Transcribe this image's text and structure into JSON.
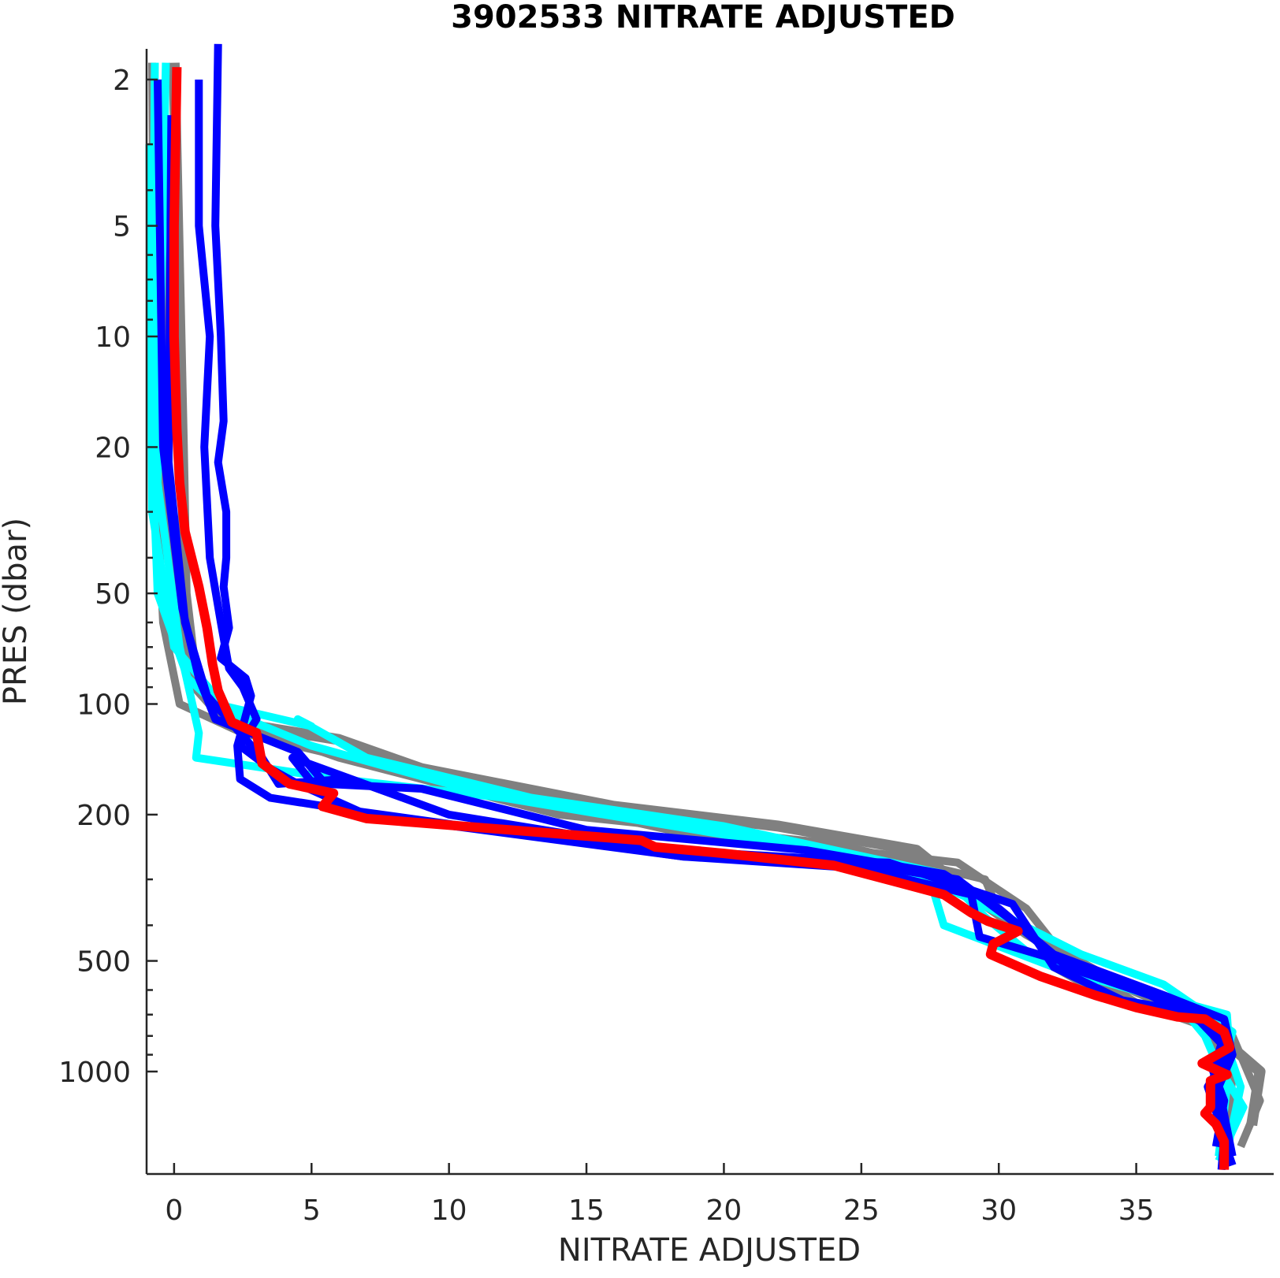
{
  "chart_data": {
    "type": "line",
    "title": "3902533  NITRATE ADJUSTED",
    "xlabel": "NITRATE ADJUSTED",
    "ylabel": "PRES (dbar)",
    "xlim": [
      -1,
      40
    ],
    "ylim": [
      1.65,
      1900
    ],
    "y_scale": "log",
    "y_reversed": true,
    "grid": false,
    "x_ticks": [
      0,
      5,
      10,
      15,
      20,
      25,
      30,
      35
    ],
    "x_tick_labels": [
      "0",
      "5",
      "10",
      "15",
      "20",
      "25",
      "30",
      "35"
    ],
    "y_ticks": [
      2,
      5,
      10,
      20,
      50,
      100,
      200,
      500,
      1000
    ],
    "y_tick_labels": [
      "2",
      "5",
      "10",
      "20",
      "50",
      "100",
      "200",
      "500",
      "1000"
    ],
    "series": [
      {
        "color": "#808080",
        "width": 14,
        "points": [
          [
            0,
            1.8
          ],
          [
            0.3,
            20
          ],
          [
            0.4,
            50
          ],
          [
            0.8,
            90
          ],
          [
            1.6,
            105
          ],
          [
            3,
            115
          ],
          [
            6,
            125
          ],
          [
            9,
            150
          ],
          [
            16,
            190
          ],
          [
            22,
            215
          ],
          [
            27,
            250
          ],
          [
            29,
            330
          ],
          [
            31,
            420
          ],
          [
            34,
            560
          ],
          [
            37,
            700
          ],
          [
            38,
            800
          ],
          [
            39.5,
            1000
          ],
          [
            39.2,
            1400
          ]
        ]
      },
      {
        "color": "#808080",
        "width": 10,
        "points": [
          [
            -0.8,
            1.8
          ],
          [
            -0.7,
            20
          ],
          [
            -0.4,
            60
          ],
          [
            0.2,
            100
          ],
          [
            2.5,
            120
          ],
          [
            8,
            150
          ],
          [
            18,
            220
          ],
          [
            28.5,
            270
          ],
          [
            31,
            360
          ],
          [
            32.5,
            500
          ],
          [
            35,
            650
          ],
          [
            38.5,
            800
          ],
          [
            39.5,
            1200
          ],
          [
            38.8,
            1600
          ]
        ]
      },
      {
        "color": "#808080",
        "width": 10,
        "points": [
          [
            -0.5,
            2.5
          ],
          [
            -0.3,
            30
          ],
          [
            0.5,
            80
          ],
          [
            2,
            110
          ],
          [
            6,
            140
          ],
          [
            14,
            200
          ],
          [
            24,
            240
          ],
          [
            29.5,
            300
          ],
          [
            30.5,
            450
          ],
          [
            33.5,
            600
          ],
          [
            37.5,
            750
          ],
          [
            38.5,
            1000
          ],
          [
            38.3,
            1700
          ]
        ]
      },
      {
        "color": "#00FFFF",
        "width": 10,
        "points": [
          [
            -0.7,
            1.8
          ],
          [
            -0.8,
            20
          ],
          [
            -0.6,
            50
          ],
          [
            0.5,
            85
          ],
          [
            1.5,
            100
          ],
          [
            5,
            115
          ],
          [
            4.5,
            110
          ],
          [
            7,
            140
          ],
          [
            13,
            180
          ],
          [
            20,
            215
          ],
          [
            28,
            290
          ],
          [
            29.5,
            380
          ],
          [
            31,
            470
          ],
          [
            35,
            600
          ],
          [
            38.3,
            700
          ],
          [
            38.4,
            900
          ],
          [
            38.8,
            1100
          ],
          [
            38.2,
            1800
          ]
        ]
      },
      {
        "color": "#00FFFF",
        "width": 10,
        "points": [
          [
            -0.3,
            1.8
          ],
          [
            -0.6,
            25
          ],
          [
            0.2,
            70
          ],
          [
            0.9,
            120
          ],
          [
            0.8,
            140
          ],
          [
            6,
            160
          ],
          [
            12,
            180
          ],
          [
            22,
            240
          ],
          [
            27.5,
            300
          ],
          [
            28,
            400
          ],
          [
            32,
            520
          ],
          [
            36.5,
            650
          ],
          [
            37.5,
            800
          ],
          [
            38.3,
            1100
          ],
          [
            38,
            1700
          ]
        ]
      },
      {
        "color": "#00FFFF",
        "width": 10,
        "points": [
          [
            -0.9,
            3
          ],
          [
            -0.8,
            30
          ],
          [
            0,
            70
          ],
          [
            2,
            105
          ],
          [
            5,
            130
          ],
          [
            10,
            165
          ],
          [
            17,
            205
          ],
          [
            26,
            270
          ],
          [
            29,
            340
          ],
          [
            33,
            480
          ],
          [
            36,
            580
          ],
          [
            38.5,
            780
          ],
          [
            38.1,
            1000
          ],
          [
            38.9,
            1250
          ],
          [
            38,
            1750
          ]
        ]
      },
      {
        "color": "#0000FF",
        "width": 10,
        "points": [
          [
            -0.6,
            2
          ],
          [
            -0.4,
            20
          ],
          [
            0.3,
            55
          ],
          [
            0.9,
            85
          ],
          [
            1.5,
            110
          ],
          [
            4.5,
            135
          ],
          [
            5.5,
            165
          ],
          [
            9,
            170
          ],
          [
            15,
            220
          ],
          [
            23,
            250
          ],
          [
            28,
            290
          ],
          [
            30,
            360
          ],
          [
            32,
            480
          ],
          [
            36,
            620
          ],
          [
            38.2,
            720
          ],
          [
            38.5,
            900
          ],
          [
            38,
            1100
          ],
          [
            38.5,
            1700
          ]
        ]
      },
      {
        "color": "#0000FF",
        "width": 10,
        "points": [
          [
            -0.1,
            2.5
          ],
          [
            -0.2,
            22
          ],
          [
            0.4,
            60
          ],
          [
            1.2,
            95
          ],
          [
            3.2,
            140
          ],
          [
            3.8,
            165
          ],
          [
            6.2,
            160
          ],
          [
            5.2,
            170
          ],
          [
            4.3,
            140
          ],
          [
            10,
            200
          ],
          [
            18,
            250
          ],
          [
            24,
            265
          ],
          [
            28.5,
            300
          ],
          [
            30.5,
            390
          ],
          [
            32.5,
            520
          ],
          [
            35.5,
            620
          ],
          [
            38.2,
            790
          ],
          [
            37.8,
            1000
          ],
          [
            38.2,
            1200
          ],
          [
            37.9,
            1600
          ]
        ]
      },
      {
        "color": "#0000FF",
        "width": 10,
        "points": [
          [
            0.9,
            2
          ],
          [
            0.9,
            5
          ],
          [
            1.3,
            10
          ],
          [
            1.1,
            20
          ],
          [
            1.3,
            40
          ],
          [
            1.7,
            60
          ],
          [
            2,
            80
          ],
          [
            2.5,
            90
          ],
          [
            3,
            110
          ],
          [
            2.4,
            130
          ],
          [
            3.5,
            150
          ],
          [
            4.5,
            165
          ],
          [
            7,
            200
          ],
          [
            18.5,
            260
          ],
          [
            25,
            280
          ],
          [
            29,
            330
          ],
          [
            29.3,
            430
          ],
          [
            33,
            520
          ],
          [
            35.5,
            620
          ],
          [
            37,
            690
          ],
          [
            38.1,
            840
          ],
          [
            37.8,
            1050
          ],
          [
            38,
            1400
          ],
          [
            38.5,
            1800
          ]
        ]
      },
      {
        "color": "#0000FF",
        "width": 10,
        "points": [
          [
            1.6,
            1.6
          ],
          [
            1.5,
            5
          ],
          [
            1.7,
            10
          ],
          [
            1.8,
            17
          ],
          [
            1.6,
            22
          ],
          [
            1.9,
            30
          ],
          [
            1.9,
            40
          ],
          [
            1.8,
            48
          ],
          [
            2,
            62
          ],
          [
            1.7,
            75
          ],
          [
            2.6,
            85
          ],
          [
            2.8,
            95
          ],
          [
            2.5,
            115
          ],
          [
            2.3,
            130
          ],
          [
            2.4,
            160
          ],
          [
            3.5,
            180
          ],
          [
            6.5,
            195
          ],
          [
            18.5,
            260
          ],
          [
            26,
            270
          ],
          [
            30.5,
            350
          ],
          [
            32,
            520
          ],
          [
            34.5,
            640
          ],
          [
            37.5,
            700
          ],
          [
            38.3,
            900
          ],
          [
            37.6,
            1100
          ],
          [
            38.2,
            1500
          ],
          [
            38.1,
            1850
          ]
        ]
      },
      {
        "color": "#FF0000",
        "width": 12,
        "points": [
          [
            0.1,
            1.85
          ],
          [
            0,
            5
          ],
          [
            0,
            10
          ],
          [
            0.1,
            18
          ],
          [
            0.2,
            25
          ],
          [
            0.4,
            34
          ],
          [
            0.9,
            48
          ],
          [
            1.2,
            62
          ],
          [
            1.4,
            78
          ],
          [
            1.6,
            92
          ],
          [
            2.1,
            112
          ],
          [
            3,
            120
          ],
          [
            3.2,
            145
          ],
          [
            4.2,
            165
          ],
          [
            5.8,
            175
          ],
          [
            5.4,
            190
          ],
          [
            7,
            205
          ],
          [
            17,
            235
          ],
          [
            17.5,
            245
          ],
          [
            20,
            255
          ],
          [
            24,
            275
          ],
          [
            28,
            330
          ],
          [
            29,
            370
          ],
          [
            29.6,
            390
          ],
          [
            30.7,
            415
          ],
          [
            29.8,
            450
          ],
          [
            29.7,
            480
          ],
          [
            31.5,
            550
          ],
          [
            33.5,
            620
          ],
          [
            35,
            670
          ],
          [
            36.5,
            710
          ],
          [
            37.5,
            720
          ],
          [
            38.2,
            780
          ],
          [
            38.4,
            860
          ],
          [
            37.4,
            950
          ],
          [
            38.3,
            1020
          ],
          [
            37.7,
            1060
          ],
          [
            37.7,
            1250
          ],
          [
            37.5,
            1300
          ],
          [
            37.9,
            1390
          ],
          [
            38.2,
            1550
          ],
          [
            38.2,
            1850
          ]
        ]
      }
    ]
  }
}
